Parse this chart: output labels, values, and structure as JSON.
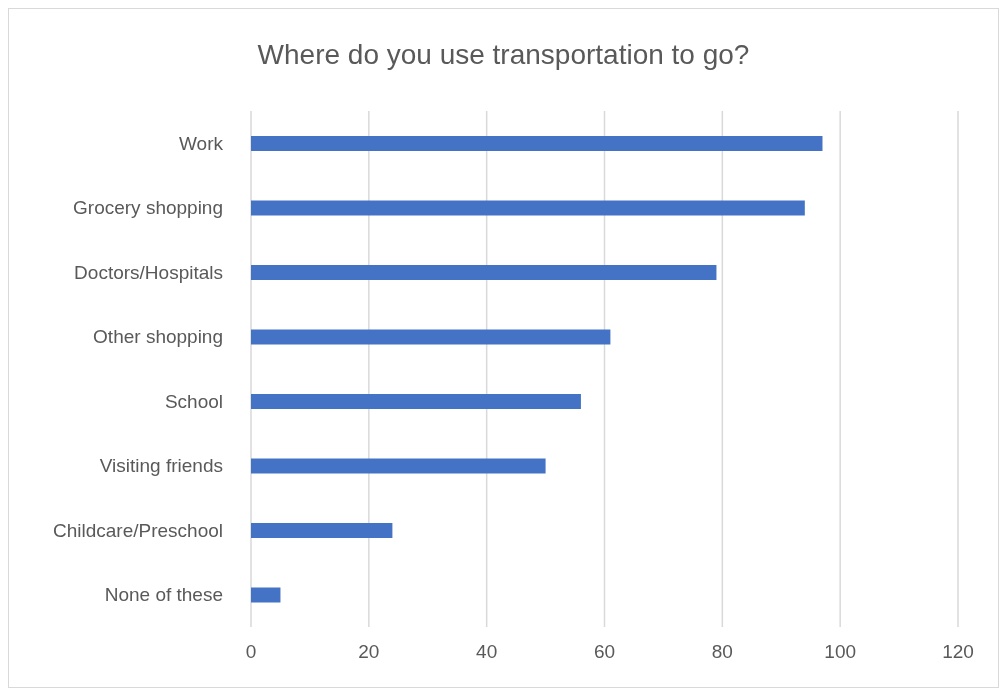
{
  "chart_data": {
    "type": "bar",
    "orientation": "horizontal",
    "title": "Where do you use transportation to go?",
    "categories": [
      "Work",
      "Grocery shopping",
      "Doctors/Hospitals",
      "Other shopping",
      "School",
      "Visiting friends",
      "Childcare/Preschool",
      "None of these"
    ],
    "values": [
      97,
      94,
      79,
      61,
      56,
      50,
      24,
      5
    ],
    "color": "#4472c4",
    "xlim": [
      0,
      120
    ],
    "xticks": [
      0,
      20,
      40,
      60,
      80,
      100,
      120
    ],
    "grid": "x"
  }
}
